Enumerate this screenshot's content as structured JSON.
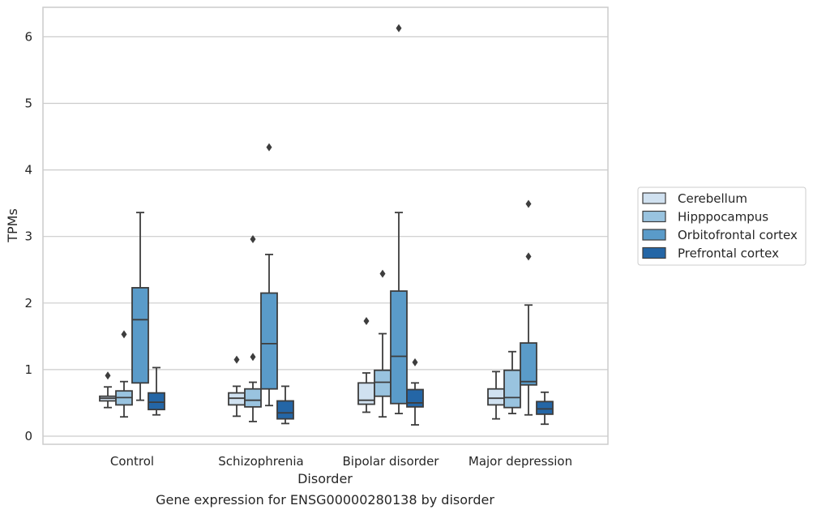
{
  "chart_data": {
    "type": "box",
    "title": "Gene expression for ENSG00000280138 by disorder",
    "xlabel": "Disorder",
    "ylabel": "TPMs",
    "ylim": [
      -0.12,
      6.45
    ],
    "yticks": [
      0,
      1,
      2,
      3,
      4,
      5,
      6
    ],
    "grid": "horizontal",
    "legend_position": "right",
    "categories": [
      "Control",
      "Schizophrenia",
      "Bipolar disorder",
      "Major depression"
    ],
    "series": [
      {
        "name": "Cerebellum",
        "color": "#d0e1f0",
        "boxes": [
          {
            "whisker_low": 0.43,
            "q1": 0.53,
            "median": 0.57,
            "q3": 0.6,
            "whisker_high": 0.74,
            "outliers": [
              0.91
            ]
          },
          {
            "whisker_low": 0.3,
            "q1": 0.47,
            "median": 0.57,
            "q3": 0.65,
            "whisker_high": 0.75,
            "outliers": [
              1.15
            ]
          },
          {
            "whisker_low": 0.36,
            "q1": 0.48,
            "median": 0.54,
            "q3": 0.8,
            "whisker_high": 0.95,
            "outliers": [
              1.73
            ]
          },
          {
            "whisker_low": 0.26,
            "q1": 0.47,
            "median": 0.57,
            "q3": 0.71,
            "whisker_high": 0.97,
            "outliers": []
          }
        ]
      },
      {
        "name": "Hipppocampus",
        "color": "#99c3df",
        "boxes": [
          {
            "whisker_low": 0.29,
            "q1": 0.47,
            "median": 0.58,
            "q3": 0.68,
            "whisker_high": 0.82,
            "outliers": [
              1.53
            ]
          },
          {
            "whisker_low": 0.22,
            "q1": 0.44,
            "median": 0.54,
            "q3": 0.71,
            "whisker_high": 0.81,
            "outliers": [
              1.19,
              2.96
            ]
          },
          {
            "whisker_low": 0.29,
            "q1": 0.6,
            "median": 0.81,
            "q3": 0.99,
            "whisker_high": 1.54,
            "outliers": [
              2.44
            ]
          },
          {
            "whisker_low": 0.34,
            "q1": 0.43,
            "median": 0.58,
            "q3": 0.99,
            "whisker_high": 1.27,
            "outliers": []
          }
        ]
      },
      {
        "name": "Orbitofrontal cortex",
        "color": "#5a9bc9",
        "boxes": [
          {
            "whisker_low": 0.54,
            "q1": 0.8,
            "median": 1.75,
            "q3": 2.23,
            "whisker_high": 3.36,
            "outliers": []
          },
          {
            "whisker_low": 0.46,
            "q1": 0.71,
            "median": 1.39,
            "q3": 2.15,
            "whisker_high": 2.73,
            "outliers": [
              4.34
            ]
          },
          {
            "whisker_low": 0.34,
            "q1": 0.49,
            "median": 1.2,
            "q3": 2.18,
            "whisker_high": 3.36,
            "outliers": [
              6.13
            ]
          },
          {
            "whisker_low": 0.32,
            "q1": 0.77,
            "median": 0.82,
            "q3": 1.4,
            "whisker_high": 1.97,
            "outliers": [
              2.7,
              3.49
            ]
          }
        ]
      },
      {
        "name": "Prefrontal cortex",
        "color": "#2466a6",
        "boxes": [
          {
            "whisker_low": 0.32,
            "q1": 0.4,
            "median": 0.51,
            "q3": 0.65,
            "whisker_high": 1.03,
            "outliers": []
          },
          {
            "whisker_low": 0.19,
            "q1": 0.26,
            "median": 0.35,
            "q3": 0.53,
            "whisker_high": 0.75,
            "outliers": []
          },
          {
            "whisker_low": 0.17,
            "q1": 0.44,
            "median": 0.5,
            "q3": 0.7,
            "whisker_high": 0.8,
            "outliers": [
              1.11
            ]
          },
          {
            "whisker_low": 0.18,
            "q1": 0.33,
            "median": 0.41,
            "q3": 0.52,
            "whisker_high": 0.66,
            "outliers": []
          }
        ]
      }
    ]
  }
}
